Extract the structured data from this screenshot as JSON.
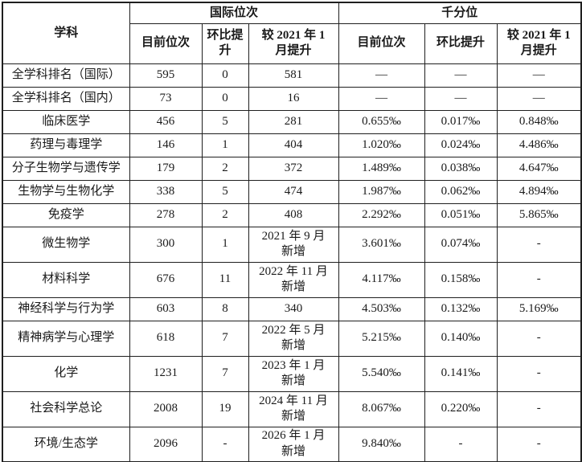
{
  "table": {
    "col1_header": "学科",
    "group_headers": {
      "international_rank": "国际位次",
      "per_mille": "千分位"
    },
    "sub_headers": {
      "intl_current_rank": "目前位次",
      "intl_mom_improvement": "环比提升",
      "intl_vs_jan2021": "较 2021 年 1\n月提升",
      "pm_current_rank": "目前位次",
      "pm_mom_improvement": "环比提升",
      "pm_vs_jan2021": "较 2021 年 1\n月提升"
    },
    "rows": [
      {
        "subject": "全学科排名（国际）",
        "cells": [
          "595",
          "0",
          "581",
          "—",
          "—",
          "—"
        ]
      },
      {
        "subject": "全学科排名（国内）",
        "cells": [
          "73",
          "0",
          "16",
          "—",
          "—",
          "—"
        ]
      },
      {
        "subject": "临床医学",
        "cells": [
          "456",
          "5",
          "281",
          "0.655‰",
          "0.017‰",
          "0.848‰"
        ]
      },
      {
        "subject": "药理与毒理学",
        "cells": [
          "146",
          "1",
          "404",
          "1.020‰",
          "0.024‰",
          "4.486‰"
        ]
      },
      {
        "subject": "分子生物学与遗传学",
        "cells": [
          "179",
          "2",
          "372",
          "1.489‰",
          "0.038‰",
          "4.647‰"
        ]
      },
      {
        "subject": "生物学与生物化学",
        "cells": [
          "338",
          "5",
          "474",
          "1.987‰",
          "0.062‰",
          "4.894‰"
        ]
      },
      {
        "subject": "免疫学",
        "cells": [
          "278",
          "2",
          "408",
          "2.292‰",
          "0.051‰",
          "5.865‰"
        ]
      },
      {
        "subject": "微生物学",
        "cells": [
          "300",
          "1",
          "2021 年 9 月\n新增",
          "3.601‰",
          "0.074‰",
          "-"
        ]
      },
      {
        "subject": "材料科学",
        "cells": [
          "676",
          "11",
          "2022 年 11 月\n新增",
          "4.117‰",
          "0.158‰",
          "-"
        ]
      },
      {
        "subject": "神经科学与行为学",
        "cells": [
          "603",
          "8",
          "340",
          "4.503‰",
          "0.132‰",
          "5.169‰"
        ]
      },
      {
        "subject": "精神病学与心理学",
        "cells": [
          "618",
          "7",
          "2022 年 5 月\n新增",
          "5.215‰",
          "0.140‰",
          "-"
        ]
      },
      {
        "subject": "化学",
        "cells": [
          "1231",
          "7",
          "2023 年 1 月\n新增",
          "5.540‰",
          "0.141‰",
          "-"
        ]
      },
      {
        "subject": "社会科学总论",
        "cells": [
          "2008",
          "19",
          "2024 年 11 月\n新增",
          "8.067‰",
          "0.220‰",
          "-"
        ]
      },
      {
        "subject": "环境/生态学",
        "cells": [
          "2096",
          "-",
          "2026 年 1 月\n新增",
          "9.840‰",
          "-",
          "-"
        ]
      }
    ]
  }
}
